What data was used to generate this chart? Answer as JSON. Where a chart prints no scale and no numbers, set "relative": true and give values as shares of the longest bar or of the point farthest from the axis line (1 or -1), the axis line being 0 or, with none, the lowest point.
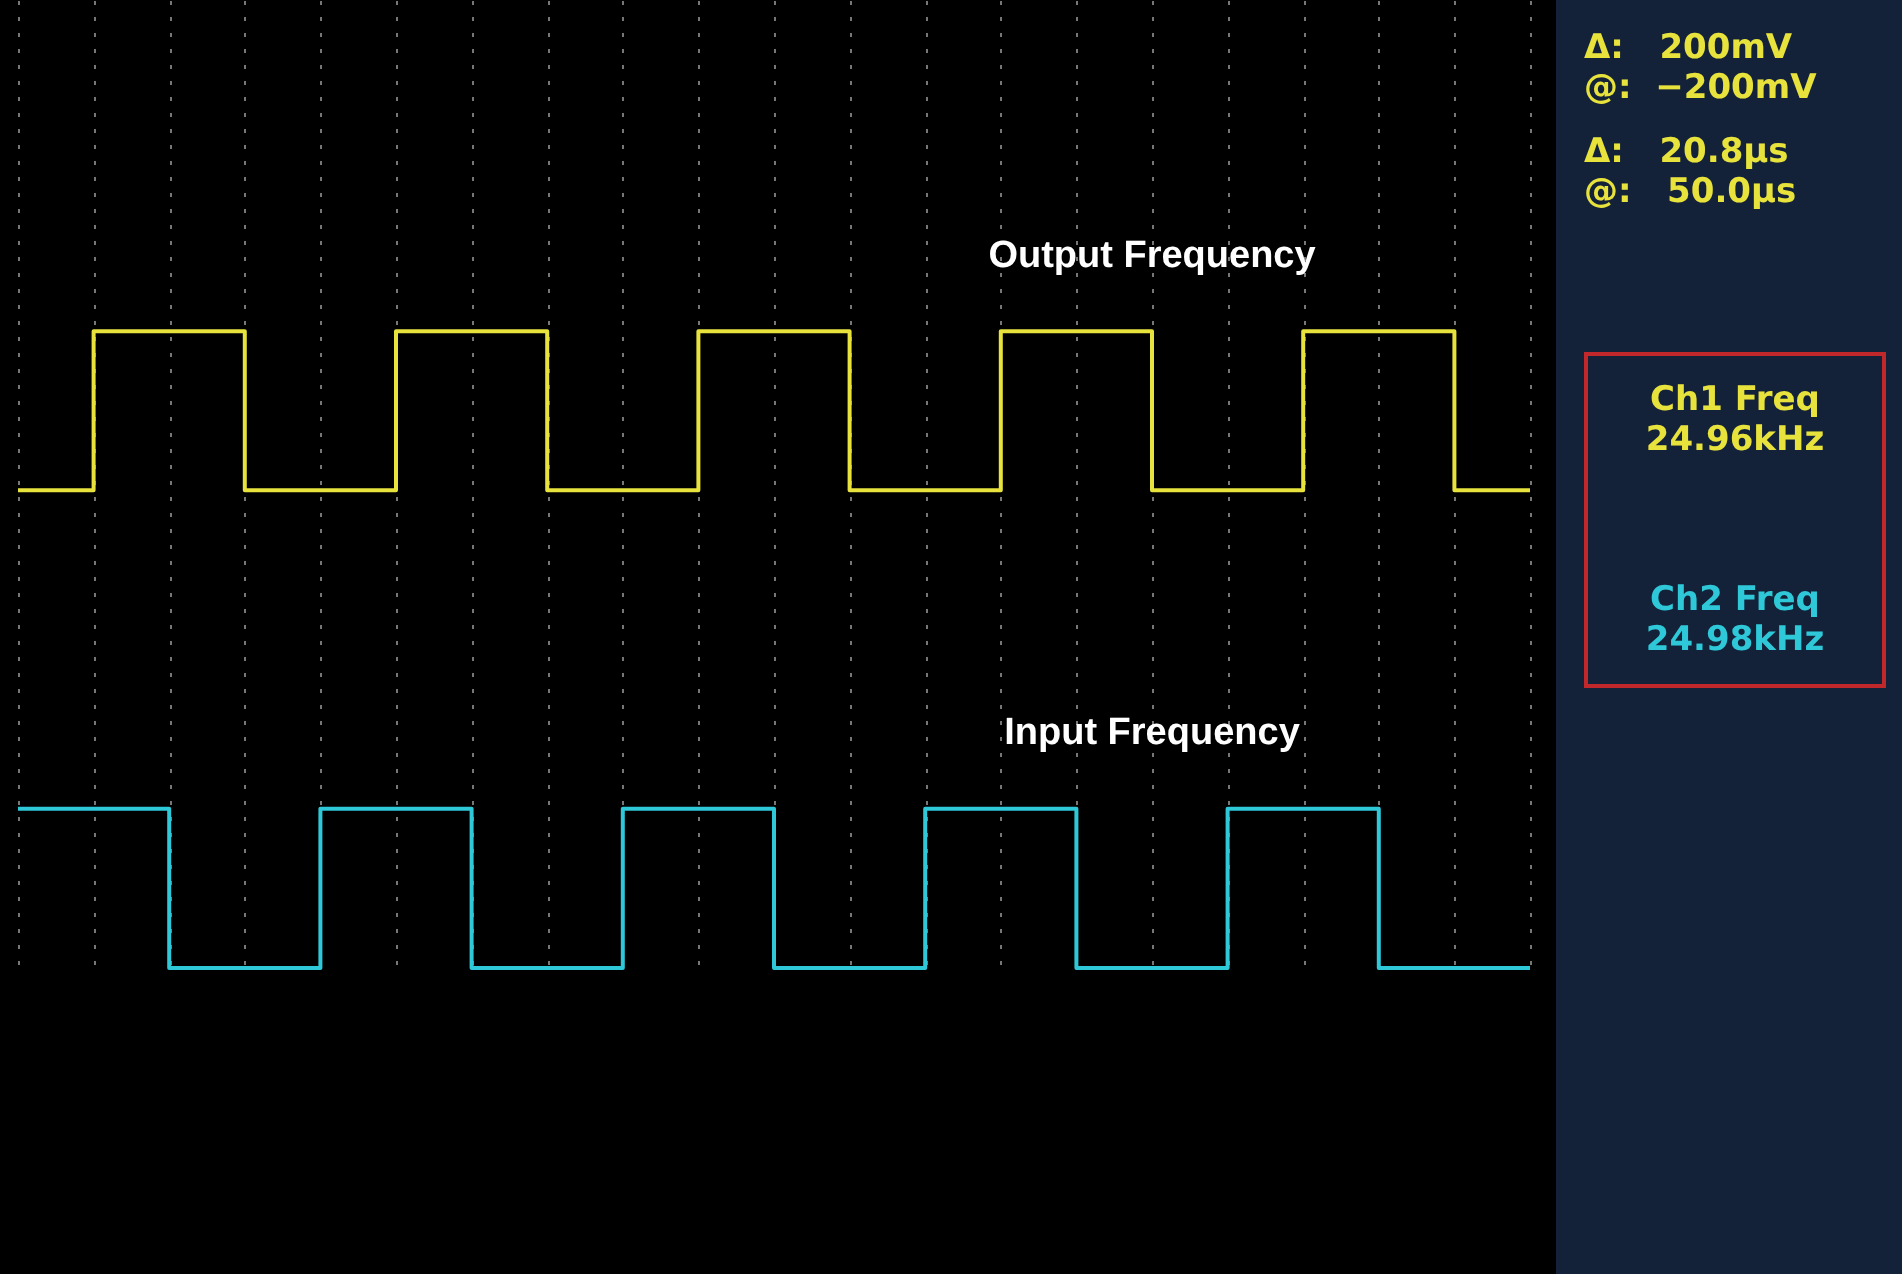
{
  "chart_data": {
    "type": "step",
    "relative": true,
    "legend": false,
    "grid": "x",
    "categories": [
      null,
      null,
      null,
      null,
      null,
      null,
      null,
      null,
      null,
      null,
      null,
      null,
      null,
      null,
      null,
      null,
      null,
      null,
      null,
      null,
      null
    ],
    "series": [
      {
        "name": "Output Frequency",
        "color": "#e8e23c",
        "values": [
          0.75,
          1,
          1,
          0.75,
          0.75,
          1,
          1,
          0.75,
          0.75,
          1,
          1,
          0.75,
          0.75,
          1,
          1,
          0.75,
          0.75,
          1,
          1,
          0.75,
          0.75
        ]
      },
      {
        "name": "Input Frequency",
        "color": "#2ec8d8",
        "values": [
          0.25,
          0.25,
          0,
          0,
          0.25,
          0.25,
          0,
          0,
          0.25,
          0.25,
          0,
          0,
          0.25,
          0.25,
          0,
          0,
          0.25,
          0.25,
          0,
          0,
          0
        ]
      }
    ],
    "annotations": [
      "Δ:   200mV",
      "@:  −200mV",
      "Δ:   20.8µs",
      "@:   50.0µs",
      "Ch1 Freq",
      "24.96kHz",
      "Ch2 Freq",
      "24.98kHz"
    ]
  }
}
